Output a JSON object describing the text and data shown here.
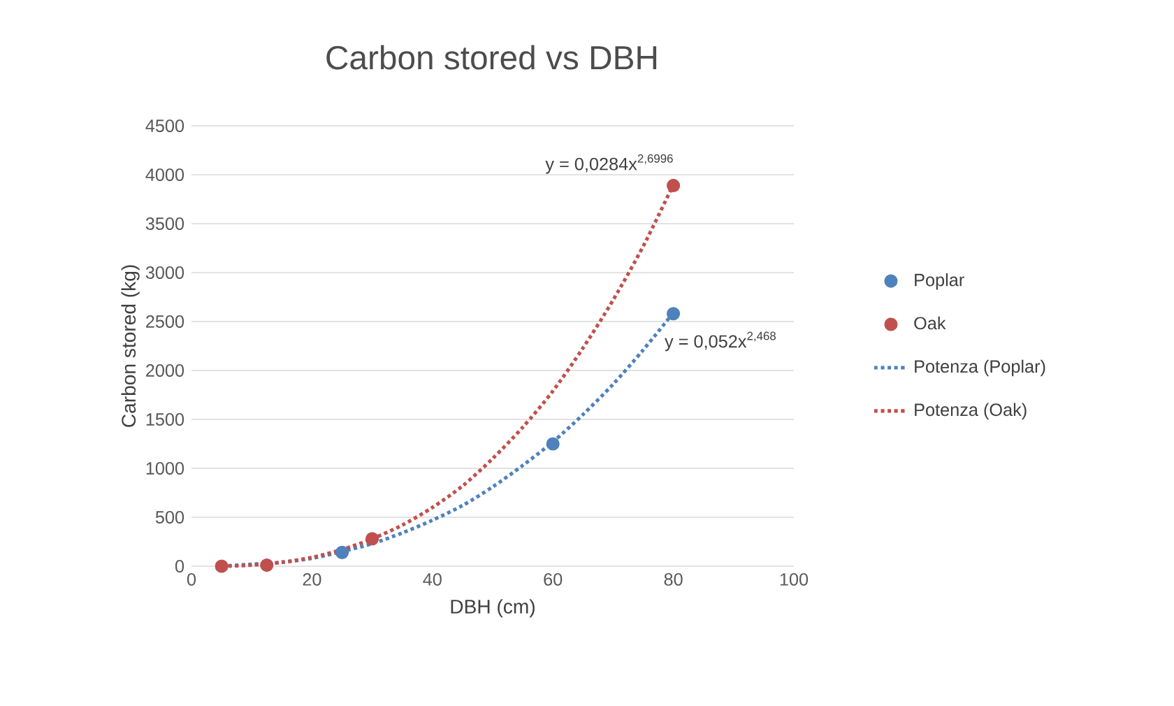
{
  "chart_data": {
    "type": "scatter",
    "title": "Carbon stored vs DBH",
    "xlabel": "DBH (cm)",
    "ylabel": "Carbon stored (kg)",
    "xlim": [
      0,
      100
    ],
    "xticks": [
      0,
      20,
      40,
      60,
      80,
      100
    ],
    "ylim": [
      0,
      4500
    ],
    "yticks": [
      0,
      500,
      1000,
      1500,
      2000,
      2500,
      3000,
      3500,
      4000,
      4500
    ],
    "grid": "y",
    "legend": "right",
    "series": [
      {
        "name": "Poplar",
        "marker": "circle",
        "color": "#4f81bd",
        "x": [
          25,
          60,
          80
        ],
        "values": [
          140,
          1250,
          2580
        ]
      },
      {
        "name": "Oak",
        "marker": "circle",
        "color": "#c0504d",
        "x": [
          5,
          12.5,
          30,
          80
        ],
        "values": [
          0,
          10,
          280,
          3890
        ]
      },
      {
        "name": "Potenza (Poplar)",
        "type": "line",
        "marker": "none",
        "line_style": "dotted",
        "color": "#4f81bd",
        "x": [
          5,
          10,
          15,
          20,
          25,
          30,
          35,
          40,
          45,
          50,
          55,
          60,
          65,
          70,
          75,
          80
        ],
        "values": [
          0,
          20,
          40,
          80,
          150,
          230,
          340,
          470,
          620,
          810,
          1030,
          1270,
          1550,
          1860,
          2210,
          2590
        ]
      },
      {
        "name": "Potenza (Oak)",
        "type": "line",
        "marker": "none",
        "line_style": "dotted",
        "color": "#c0504d",
        "x": [
          5,
          10,
          15,
          20,
          25,
          30,
          35,
          40,
          45,
          50,
          55,
          60,
          65,
          70,
          75,
          80
        ],
        "values": [
          0,
          10,
          40,
          90,
          170,
          280,
          420,
          600,
          820,
          1100,
          1420,
          1790,
          2230,
          2720,
          3270,
          3900
        ]
      }
    ],
    "annotations": [
      {
        "text": "y = 0,0284x$^{2,6996}$",
        "x": 80,
        "y": 3899
      },
      {
        "text": "y = 0,052x$^{2,468}$",
        "x": 80,
        "y": 2587
      }
    ]
  }
}
